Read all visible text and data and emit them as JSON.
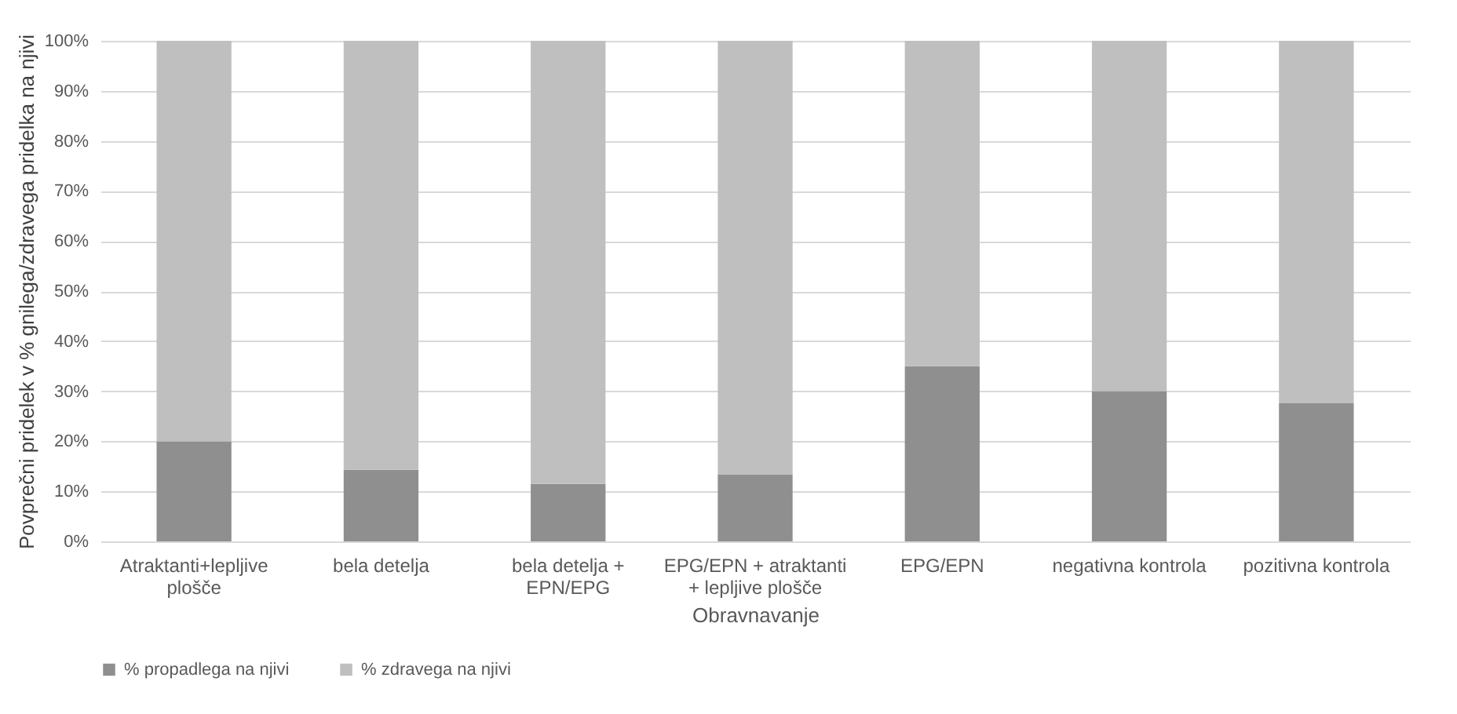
{
  "chart_data": {
    "type": "bar",
    "stacked": true,
    "xlabel": "Obravnavanje",
    "ylabel": "Povprečni pridelek v % gnilega/zdravega pridelka na njivi",
    "categories": [
      "Atraktanti+lepljive plošče",
      "bela detelja",
      "bela detelja + EPN/EPG",
      "EPG/EPN + atraktanti + lepljive plošče",
      "EPG/EPN",
      "negativna kontrola",
      "pozitivna kontrola"
    ],
    "series": [
      {
        "name": "% propadlega na njivi",
        "color": "#8f8f8f",
        "values": [
          20,
          14.3,
          11.5,
          13.4,
          35,
          30,
          27.6
        ]
      },
      {
        "name": "% zdravega na njivi",
        "color": "#bfbfbf",
        "values": [
          80,
          85.7,
          88.5,
          86.6,
          65,
          70,
          72.4
        ]
      }
    ],
    "ylim": [
      0,
      100
    ],
    "yticks": [
      {
        "value": 0,
        "label": "0%"
      },
      {
        "value": 10,
        "label": "10%"
      },
      {
        "value": 20,
        "label": "20%"
      },
      {
        "value": 30,
        "label": "30%"
      },
      {
        "value": 40,
        "label": "40%"
      },
      {
        "value": 50,
        "label": "50%"
      },
      {
        "value": 60,
        "label": "60%"
      },
      {
        "value": 70,
        "label": "70%"
      },
      {
        "value": 80,
        "label": "80%"
      },
      {
        "value": 90,
        "label": "90%"
      },
      {
        "value": 100,
        "label": "100%"
      }
    ],
    "grid": "y",
    "legend": "bottom"
  }
}
